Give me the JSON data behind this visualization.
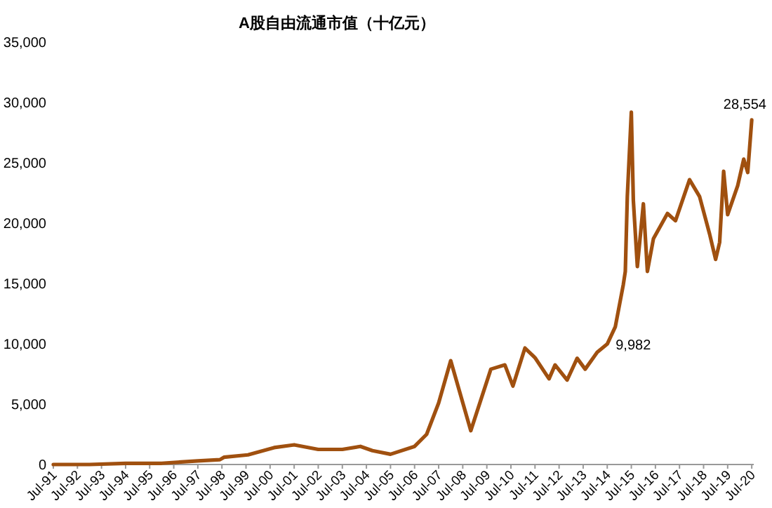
{
  "chart_data": {
    "type": "line",
    "title": "A股自由流通市值（十亿元）",
    "x": [
      "1991-07",
      "1993-01",
      "1994-07",
      "1996-01",
      "1997-07",
      "1998-06",
      "1998-08",
      "1999-08",
      "2000-09",
      "2001-07",
      "2002-07",
      "2003-07",
      "2004-04",
      "2004-10",
      "2005-07",
      "2006-07",
      "2007-01",
      "2007-07",
      "2008-01",
      "2008-11",
      "2009-09",
      "2010-04",
      "2010-08",
      "2011-02",
      "2011-07",
      "2012-02",
      "2012-05",
      "2012-11",
      "2013-04",
      "2013-08",
      "2014-02",
      "2014-07",
      "2014-11",
      "2015-03",
      "2015-04",
      "2015-05",
      "2015-07",
      "2015-08",
      "2015-10",
      "2016-01",
      "2016-03",
      "2016-06",
      "2017-01",
      "2017-05",
      "2017-12",
      "2018-05",
      "2018-10",
      "2019-01",
      "2019-03",
      "2019-05",
      "2019-07",
      "2019-12",
      "2020-03",
      "2020-05",
      "2020-07"
    ],
    "series": [
      {
        "color": "#a0500f",
        "values": [
          0,
          0,
          100,
          100,
          300,
          400,
          600,
          800,
          1400,
          1630,
          1250,
          1250,
          1500,
          1150,
          850,
          1500,
          2500,
          5100,
          8600,
          2800,
          7900,
          8250,
          6500,
          9650,
          8850,
          7100,
          8250,
          7000,
          8800,
          7900,
          9300,
          9982,
          11400,
          14900,
          16000,
          22200,
          29200,
          21900,
          16400,
          21600,
          16000,
          18700,
          20800,
          20200,
          23600,
          22200,
          19100,
          17000,
          18400,
          24300,
          20700,
          23100,
          25300,
          24200,
          28554
        ]
      }
    ],
    "xlim": [
      "1991-07",
      "2020-08"
    ],
    "xticks": [
      {
        "value": "1991-07",
        "label": "Jul-91"
      },
      {
        "value": "1992-07",
        "label": "Jul-92"
      },
      {
        "value": "1993-07",
        "label": "Jul-93"
      },
      {
        "value": "1994-07",
        "label": "Jul-94"
      },
      {
        "value": "1995-07",
        "label": "Jul-95"
      },
      {
        "value": "1996-07",
        "label": "Jul-96"
      },
      {
        "value": "1997-07",
        "label": "Jul-97"
      },
      {
        "value": "1998-07",
        "label": "Jul-98"
      },
      {
        "value": "1999-07",
        "label": "Jul-99"
      },
      {
        "value": "2000-07",
        "label": "Jul-00"
      },
      {
        "value": "2001-07",
        "label": "Jul-01"
      },
      {
        "value": "2002-07",
        "label": "Jul-02"
      },
      {
        "value": "2003-07",
        "label": "Jul-03"
      },
      {
        "value": "2004-07",
        "label": "Jul-04"
      },
      {
        "value": "2005-07",
        "label": "Jul-05"
      },
      {
        "value": "2006-07",
        "label": "Jul-06"
      },
      {
        "value": "2007-07",
        "label": "Jul-07"
      },
      {
        "value": "2008-07",
        "label": "Jul-08"
      },
      {
        "value": "2009-07",
        "label": "Jul-09"
      },
      {
        "value": "2010-07",
        "label": "Jul-10"
      },
      {
        "value": "2011-07",
        "label": "Jul-11"
      },
      {
        "value": "2012-07",
        "label": "Jul-12"
      },
      {
        "value": "2013-07",
        "label": "Jul-13"
      },
      {
        "value": "2014-07",
        "label": "Jul-14"
      },
      {
        "value": "2015-07",
        "label": "Jul-15"
      },
      {
        "value": "2016-07",
        "label": "Jul-16"
      },
      {
        "value": "2017-07",
        "label": "Jul-17"
      },
      {
        "value": "2018-07",
        "label": "Jul-18"
      },
      {
        "value": "2019-07",
        "label": "Jul-19"
      },
      {
        "value": "2020-07",
        "label": "Jul-20"
      }
    ],
    "ylim": [
      0,
      35000
    ],
    "yticks": [
      0,
      {
        "value": 5000,
        "label": "5,000"
      },
      {
        "value": 10000,
        "label": "10,000"
      },
      {
        "value": 15000,
        "label": "15,000"
      },
      {
        "value": 20000,
        "label": "20,000"
      },
      {
        "value": 25000,
        "label": "25,000"
      },
      {
        "value": 30000,
        "label": "30,000"
      },
      {
        "value": 35000,
        "label": "35,000"
      }
    ],
    "annotations": [
      {
        "text": "9,982",
        "x": "2014-07",
        "y": 9982
      },
      {
        "text": "28,554",
        "x": "2020-07",
        "y": 28554
      }
    ],
    "grid": false,
    "marker": "none",
    "line_style": "solid"
  }
}
